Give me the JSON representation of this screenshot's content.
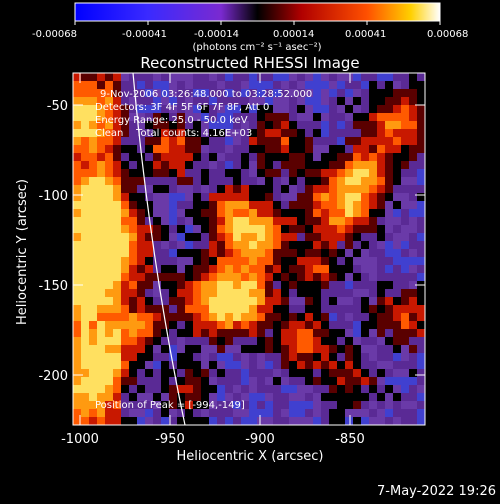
{
  "colorbar": {
    "ticks": [
      "-0.00068",
      "-0.00041",
      "-0.00014",
      "0.00014",
      "0.00041",
      "0.00068"
    ],
    "units": "(photons cm⁻² s⁻¹ asec⁻²)"
  },
  "title": "Reconstructed RHESSI Image",
  "annotations": {
    "time_range": "9-Nov-2006 03:26:48.000 to 03:28:52.000",
    "detectors": "Detectors: 3F 4F 5F 6F 7F 8F, Att 0",
    "energy": "Energy Range: 25.0 - 50.0 keV",
    "clean": "Clean    Total counts: 4.16E+03",
    "peak": "Position of Peak = [-994,-149]"
  },
  "axes": {
    "xlabel": "Heliocentric X (arcsec)",
    "ylabel": "Heliocentric Y (arcsec)",
    "xticks": [
      "-1000",
      "-950",
      "-900",
      "-850"
    ],
    "yticks": [
      "-50",
      "-100",
      "-150",
      "-200"
    ]
  },
  "footer": {
    "date": "7-May-2022 19:26"
  },
  "colors": {
    "background": "#000000",
    "grid_purple": "#6a2fa0"
  }
}
